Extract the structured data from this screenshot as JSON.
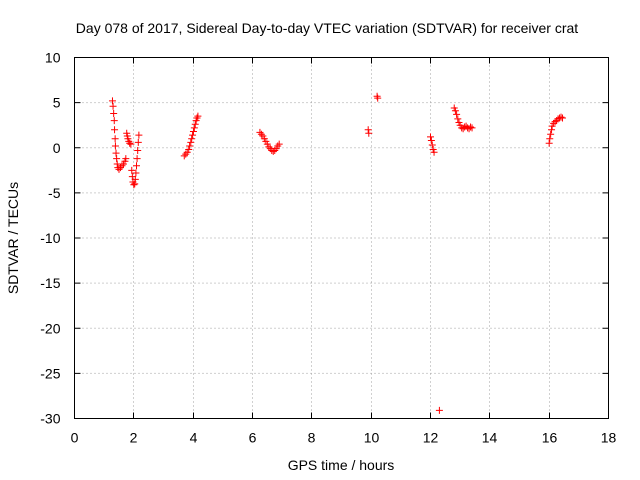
{
  "chart_data": {
    "type": "scatter",
    "title": "Day 078 of 2017, Sidereal Day-to-day VTEC variation (SDTVAR) for receiver crat",
    "xlabel": "GPS time / hours",
    "ylabel": "SDTVAR / TECUs",
    "xlim": [
      0,
      18
    ],
    "ylim": [
      -30,
      10
    ],
    "xticks": [
      0,
      2,
      4,
      6,
      8,
      10,
      12,
      14,
      16,
      18
    ],
    "yticks": [
      -30,
      -25,
      -20,
      -15,
      -10,
      -5,
      0,
      5,
      10
    ],
    "grid": true,
    "marker": "+",
    "color": "#ff0000",
    "series": [
      {
        "name": "SDTVAR",
        "points": [
          [
            1.28,
            5.2
          ],
          [
            1.3,
            4.6
          ],
          [
            1.32,
            3.8
          ],
          [
            1.34,
            3.0
          ],
          [
            1.35,
            2.0
          ],
          [
            1.37,
            1.0
          ],
          [
            1.38,
            0.2
          ],
          [
            1.4,
            -0.6
          ],
          [
            1.42,
            -1.2
          ],
          [
            1.44,
            -1.8
          ],
          [
            1.46,
            -2.2
          ],
          [
            1.5,
            -2.4
          ],
          [
            1.55,
            -2.2
          ],
          [
            1.6,
            -2.0
          ],
          [
            1.65,
            -1.8
          ],
          [
            1.7,
            -1.5
          ],
          [
            1.73,
            -1.2
          ],
          [
            1.76,
            1.6
          ],
          [
            1.78,
            1.3
          ],
          [
            1.8,
            1.0
          ],
          [
            1.83,
            0.7
          ],
          [
            1.86,
            0.5
          ],
          [
            1.9,
            0.4
          ],
          [
            1.93,
            -2.5
          ],
          [
            1.95,
            -3.2
          ],
          [
            1.97,
            -3.8
          ],
          [
            2.0,
            -4.1
          ],
          [
            2.03,
            -4.0
          ],
          [
            2.05,
            -3.5
          ],
          [
            2.07,
            -2.8
          ],
          [
            2.09,
            -2.0
          ],
          [
            2.11,
            -1.2
          ],
          [
            2.13,
            -0.3
          ],
          [
            2.15,
            0.6
          ],
          [
            2.17,
            1.4
          ],
          [
            3.7,
            -0.9
          ],
          [
            3.75,
            -0.7
          ],
          [
            3.8,
            -0.5
          ],
          [
            3.85,
            -0.2
          ],
          [
            3.88,
            0.2
          ],
          [
            3.92,
            0.6
          ],
          [
            3.95,
            1.0
          ],
          [
            3.98,
            1.4
          ],
          [
            4.01,
            1.8
          ],
          [
            4.04,
            2.2
          ],
          [
            4.07,
            2.6
          ],
          [
            4.1,
            3.0
          ],
          [
            4.13,
            3.3
          ],
          [
            4.16,
            3.5
          ],
          [
            6.25,
            1.7
          ],
          [
            6.3,
            1.5
          ],
          [
            6.35,
            1.3
          ],
          [
            6.4,
            1.0
          ],
          [
            6.45,
            0.7
          ],
          [
            6.5,
            0.4
          ],
          [
            6.55,
            0.1
          ],
          [
            6.6,
            -0.1
          ],
          [
            6.65,
            -0.3
          ],
          [
            6.7,
            -0.4
          ],
          [
            6.75,
            -0.3
          ],
          [
            6.8,
            -0.1
          ],
          [
            6.85,
            0.2
          ],
          [
            6.9,
            0.4
          ],
          [
            9.9,
            2.0
          ],
          [
            9.92,
            1.6
          ],
          [
            10.2,
            5.7
          ],
          [
            10.22,
            5.5
          ],
          [
            12.0,
            1.2
          ],
          [
            12.03,
            0.8
          ],
          [
            12.06,
            0.3
          ],
          [
            12.09,
            -0.2
          ],
          [
            12.12,
            -0.5
          ],
          [
            12.3,
            -29.1
          ],
          [
            12.8,
            4.4
          ],
          [
            12.84,
            4.1
          ],
          [
            12.88,
            3.7
          ],
          [
            12.92,
            3.2
          ],
          [
            12.96,
            2.8
          ],
          [
            13.0,
            2.5
          ],
          [
            13.05,
            2.2
          ],
          [
            13.1,
            2.1
          ],
          [
            13.15,
            2.3
          ],
          [
            13.2,
            2.4
          ],
          [
            13.25,
            2.2
          ],
          [
            13.3,
            2.1
          ],
          [
            13.35,
            2.3
          ],
          [
            13.4,
            2.2
          ],
          [
            16.0,
            0.5
          ],
          [
            16.02,
            1.0
          ],
          [
            16.05,
            1.5
          ],
          [
            16.08,
            2.0
          ],
          [
            16.1,
            2.4
          ],
          [
            16.15,
            2.7
          ],
          [
            16.2,
            2.9
          ],
          [
            16.25,
            3.0
          ],
          [
            16.3,
            3.2
          ],
          [
            16.35,
            3.3
          ],
          [
            16.4,
            3.4
          ],
          [
            16.45,
            3.3
          ]
        ]
      }
    ]
  }
}
